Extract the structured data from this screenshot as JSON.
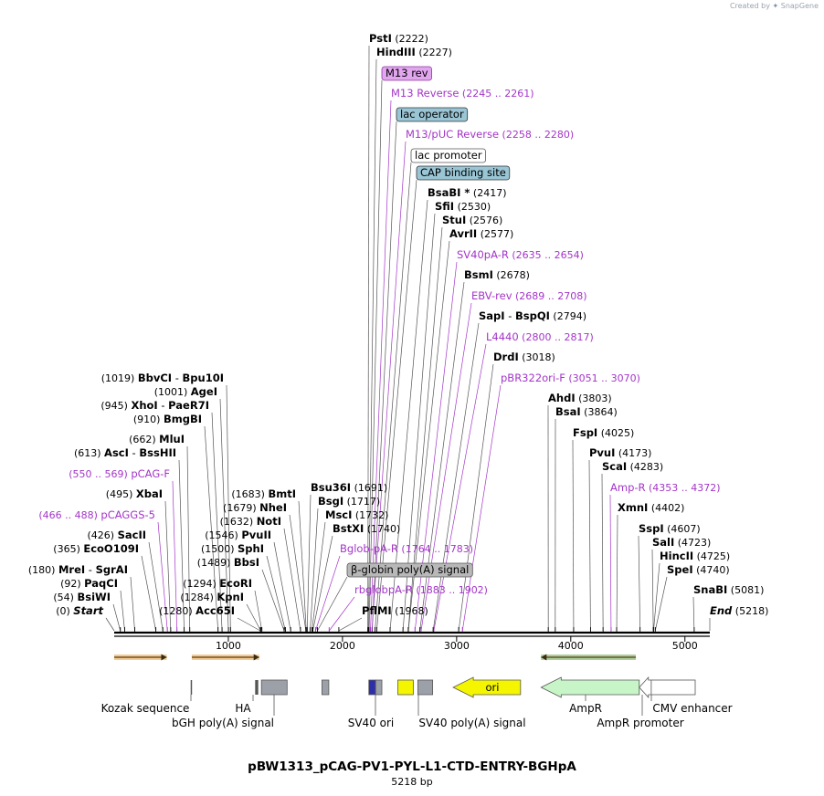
{
  "credit": {
    "prefix": "Created by",
    "brand": "SnapGene"
  },
  "title": "pBW1313_pCAG-PV1-PYL-L1-CTD-ENTRY-BGHpA",
  "subtitle": "5218 bp",
  "colors": {
    "site": "#000000",
    "primer": "#a435c8",
    "tick": "#000000",
    "leader": "#555555",
    "primer_leader": "#a435c8"
  },
  "plasmid": {
    "length": 5218
  },
  "axis": {
    "ticks": [
      1000,
      2000,
      3000,
      4000,
      5000
    ],
    "labels": [
      "1000",
      "2000",
      "3000",
      "4000",
      "5000"
    ]
  },
  "sites": [
    {
      "name": "PstI",
      "pos": "(2222)",
      "at": 2222,
      "kind": "enzyme"
    },
    {
      "name": "HindIII",
      "pos": "(2227)",
      "at": 2227,
      "kind": "enzyme"
    },
    {
      "name": "M13 rev",
      "pos": "",
      "at": 2233,
      "kind": "featbox",
      "fill": "#e2a6ef",
      "stroke": "#8a3aa0"
    },
    {
      "name": "M13 Reverse",
      "pos": "(2245 .. 2261)",
      "at": 2245,
      "kind": "primer"
    },
    {
      "name": "lac operator",
      "pos": "",
      "at": 2260,
      "kind": "featbox",
      "fill": "#99c5d4",
      "stroke": "#333333"
    },
    {
      "name": "M13/pUC Reverse",
      "pos": "(2258 .. 2280)",
      "at": 2258,
      "kind": "primer"
    },
    {
      "name": "lac promoter",
      "pos": "",
      "at": 2285,
      "kind": "featbox",
      "fill": "#ffffff",
      "stroke": "#555555"
    },
    {
      "name": "CAP binding site",
      "pos": "",
      "at": 2300,
      "kind": "featbox",
      "fill": "#99c5d4",
      "stroke": "#333333"
    },
    {
      "name": "BsaBI *",
      "pos": "(2417)",
      "at": 2417,
      "kind": "enzyme"
    },
    {
      "name": "SfiI",
      "pos": "(2530)",
      "at": 2530,
      "kind": "enzyme"
    },
    {
      "name": "StuI",
      "pos": "(2576)",
      "at": 2576,
      "kind": "enzyme"
    },
    {
      "name": "AvrII",
      "pos": "(2577)",
      "at": 2577,
      "kind": "enzyme"
    },
    {
      "name": "SV40pA-R",
      "pos": "(2635 .. 2654)",
      "at": 2635,
      "kind": "primer"
    },
    {
      "name": "BsmI",
      "pos": "(2678)",
      "at": 2678,
      "kind": "enzyme"
    },
    {
      "name": "EBV-rev",
      "pos": "(2689 .. 2708)",
      "at": 2689,
      "kind": "primer"
    },
    {
      "name": "SapI",
      "name2": "BspQI",
      "pos": "(2794)",
      "at": 2794,
      "kind": "enzyme"
    },
    {
      "name": "L4440",
      "pos": "(2800 .. 2817)",
      "at": 2800,
      "kind": "primer"
    },
    {
      "name": "DrdI",
      "pos": "(3018)",
      "at": 3018,
      "kind": "enzyme"
    },
    {
      "name": "pBR322ori-F",
      "pos": "(3051 .. 3070)",
      "at": 3051,
      "kind": "primer"
    },
    {
      "name": "AhdI",
      "pos": "(3803)",
      "at": 3803,
      "kind": "enzyme"
    },
    {
      "name": "BsaI",
      "pos": "(3864)",
      "at": 3864,
      "kind": "enzyme"
    },
    {
      "name": "FspI",
      "pos": "(4025)",
      "at": 4025,
      "kind": "enzyme"
    },
    {
      "name": "PvuI",
      "pos": "(4173)",
      "at": 4173,
      "kind": "enzyme"
    },
    {
      "name": "ScaI",
      "pos": "(4283)",
      "at": 4283,
      "kind": "enzyme"
    },
    {
      "name": "Amp-R",
      "pos": "(4353 .. 4372)",
      "at": 4353,
      "kind": "primer"
    },
    {
      "name": "XmnI",
      "pos": "(4402)",
      "at": 4402,
      "kind": "enzyme"
    },
    {
      "name": "SspI",
      "pos": "(4607)",
      "at": 4607,
      "kind": "enzyme"
    },
    {
      "name": "SalI",
      "pos": "(4723)",
      "at": 4723,
      "kind": "enzyme"
    },
    {
      "name": "HincII",
      "pos": "(4725)",
      "at": 4725,
      "kind": "enzyme"
    },
    {
      "name": "SpeI",
      "pos": "(4740)",
      "at": 4740,
      "kind": "enzyme"
    },
    {
      "name": "SnaBI",
      "pos": "(5081)",
      "at": 5081,
      "kind": "enzyme"
    },
    {
      "name": "End",
      "pos": "(5218)",
      "at": 5218,
      "kind": "end"
    },
    {
      "name": "BbvCI",
      "name2": "Bpu10I",
      "pos": "(1019)",
      "at": 1019,
      "kind": "enzyme"
    },
    {
      "name": "AgeI",
      "pos": "(1001)",
      "at": 1001,
      "kind": "enzyme"
    },
    {
      "name": "XhoI",
      "name2": "PaeR7I",
      "pos": "(945)",
      "at": 945,
      "kind": "enzyme"
    },
    {
      "name": "BmgBI",
      "pos": "(910)",
      "at": 910,
      "kind": "enzyme"
    },
    {
      "name": "MluI",
      "pos": "(662)",
      "at": 662,
      "kind": "enzyme"
    },
    {
      "name": "AscI",
      "name2": "BssHII",
      "pos": "(613)",
      "at": 613,
      "kind": "enzyme"
    },
    {
      "name": "pCAG-F",
      "pos": "(550 .. 569)",
      "at": 550,
      "kind": "primer"
    },
    {
      "name": "XbaI",
      "pos": "(495)",
      "at": 495,
      "kind": "enzyme"
    },
    {
      "name": "pCAGGS-5",
      "pos": "(466 .. 488)",
      "at": 466,
      "kind": "primer"
    },
    {
      "name": "SacII",
      "pos": "(426)",
      "at": 426,
      "kind": "enzyme"
    },
    {
      "name": "EcoO109I",
      "pos": "(365)",
      "at": 365,
      "kind": "enzyme"
    },
    {
      "name": "MreI",
      "name2": "SgrAI",
      "pos": "(180)",
      "at": 180,
      "kind": "enzyme"
    },
    {
      "name": "PaqCI",
      "pos": "(92)",
      "at": 92,
      "kind": "enzyme"
    },
    {
      "name": "BsiWI",
      "pos": "(54)",
      "at": 54,
      "kind": "enzyme"
    },
    {
      "name": "Start",
      "pos": "(0)",
      "at": 0,
      "kind": "end"
    },
    {
      "name": "BmtI",
      "pos": "(1683)",
      "at": 1683,
      "kind": "enzyme"
    },
    {
      "name": "NheI",
      "pos": "(1679)",
      "at": 1679,
      "kind": "enzyme"
    },
    {
      "name": "NotI",
      "pos": "(1632)",
      "at": 1632,
      "kind": "enzyme"
    },
    {
      "name": "PvuII",
      "pos": "(1546)",
      "at": 1546,
      "kind": "enzyme"
    },
    {
      "name": "SphI",
      "pos": "(1500)",
      "at": 1500,
      "kind": "enzyme"
    },
    {
      "name": "BbsI",
      "pos": "(1489)",
      "at": 1489,
      "kind": "enzyme"
    },
    {
      "name": "EcoRI",
      "pos": "(1294)",
      "at": 1294,
      "kind": "enzyme"
    },
    {
      "name": "KpnI",
      "pos": "(1284)",
      "at": 1284,
      "kind": "enzyme"
    },
    {
      "name": "Acc65I",
      "pos": "(1280)",
      "at": 1280,
      "kind": "enzyme"
    },
    {
      "name": "Bsu36I",
      "pos": "(1691)",
      "at": 1691,
      "kind": "enzyme"
    },
    {
      "name": "BsgI",
      "pos": "(1717)",
      "at": 1717,
      "kind": "enzyme"
    },
    {
      "name": "MscI",
      "pos": "(1732)",
      "at": 1732,
      "kind": "enzyme"
    },
    {
      "name": "BstXI",
      "pos": "(1740)",
      "at": 1740,
      "kind": "enzyme"
    },
    {
      "name": "Bglob-pA-R",
      "pos": "(1764 .. 1783)",
      "at": 1764,
      "kind": "primer"
    },
    {
      "name": "β-globin poly(A) signal",
      "pos": "",
      "at": 1780,
      "kind": "featbox",
      "fill": "#b8b8b8",
      "stroke": "#555555"
    },
    {
      "name": "rbglobpA-R",
      "pos": "(1883 .. 1902)",
      "at": 1883,
      "kind": "primer"
    },
    {
      "name": "PflMI",
      "pos": "(1968)",
      "at": 1968,
      "kind": "enzyme"
    }
  ],
  "features": [
    {
      "name": "Kozak sequence",
      "start": 670,
      "end": 676,
      "type": "mark"
    },
    {
      "name": "HA",
      "start": 1235,
      "end": 1262,
      "type": "mark"
    },
    {
      "name": "bGH poly(A) signal",
      "start": 1290,
      "end": 1515,
      "type": "box",
      "fill": "#9ca0a8"
    },
    {
      "name": "",
      "start": 1820,
      "end": 1880,
      "type": "box",
      "fill": "#9ca0a8"
    },
    {
      "name": "SV40 ori",
      "start": 2231,
      "end": 2290,
      "type": "box",
      "fill": "#2e2ea8"
    },
    {
      "name": "",
      "start": 2290,
      "end": 2345,
      "type": "box",
      "fill": "#9ca0a8"
    },
    {
      "name": "",
      "start": 2485,
      "end": 2620,
      "type": "box",
      "fill": "#f5f500"
    },
    {
      "name": "SV40 poly(A) signal",
      "start": 2660,
      "end": 2790,
      "type": "box",
      "fill": "#9ca0a8"
    },
    {
      "name": "ori",
      "start": 2970,
      "end": 3560,
      "type": "arrow-left",
      "fill": "#f5f500"
    },
    {
      "name": "AmpR",
      "start": 3740,
      "end": 4600,
      "type": "arrow-left",
      "fill": "#c8f5c8"
    },
    {
      "name": "AmpR promoter",
      "start": 4600,
      "end": 4705,
      "type": "arrow-left-small",
      "fill": "#ffffff"
    },
    {
      "name": "CMV enhancer",
      "start": 4705,
      "end": 5090,
      "type": "box",
      "fill": "#ffffff"
    }
  ],
  "orf_arrows": [
    {
      "start": 0,
      "end": 460,
      "direction": "right",
      "fill": "#e8a23a"
    },
    {
      "start": 680,
      "end": 1270,
      "direction": "right",
      "fill": "#e8a23a"
    },
    {
      "start": 3740,
      "end": 4570,
      "direction": "left",
      "fill": "#6aa84f"
    }
  ]
}
